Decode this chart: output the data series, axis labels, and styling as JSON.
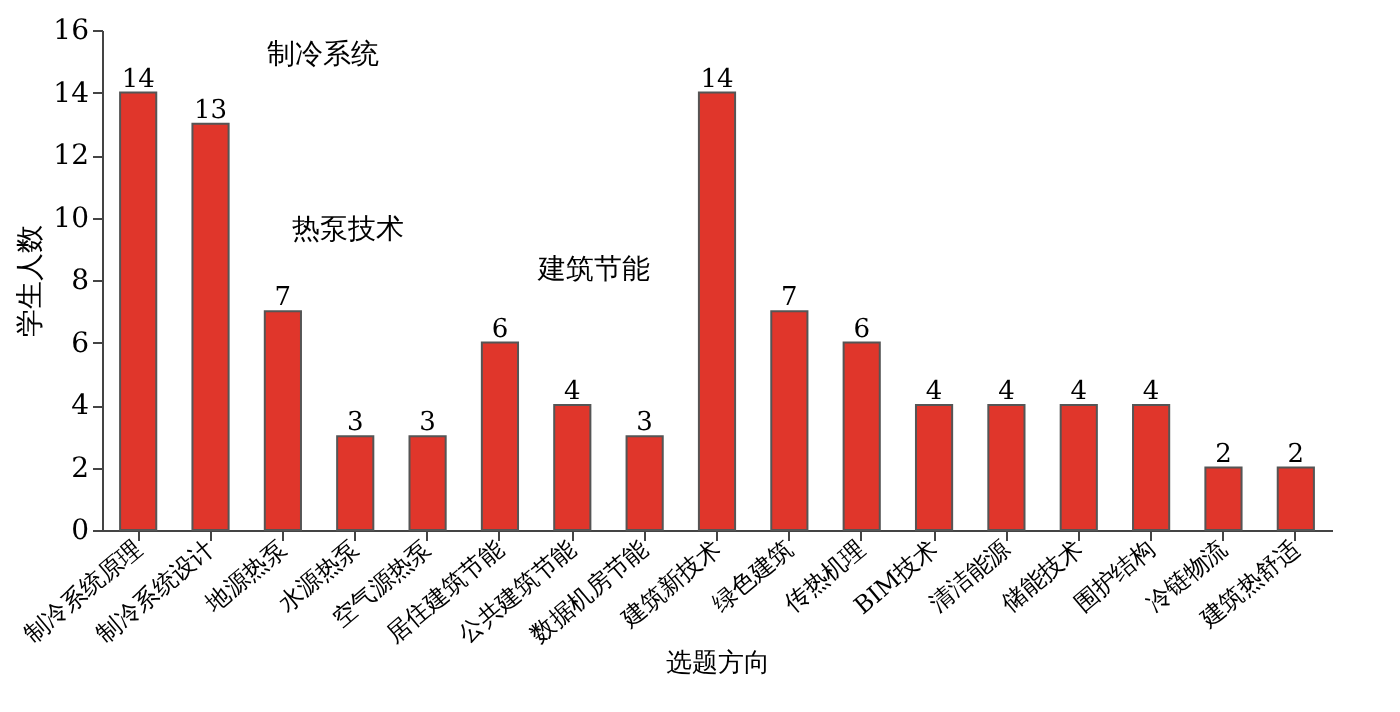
{
  "chart_data": {
    "type": "bar",
    "xlabel": "选题方向",
    "ylabel": "学生人数",
    "categories": [
      "制冷系统原理",
      "制冷系统设计",
      "地源热泵",
      "水源热泵",
      "空气源热泵",
      "居住建筑节能",
      "公共建筑节能",
      "数据机房节能",
      "建筑新技术",
      "绿色建筑",
      "传热机理",
      "BIM技术",
      "清洁能源",
      "储能技术",
      "围护结构",
      "冷链物流",
      "建筑热舒适"
    ],
    "values": [
      14,
      13,
      7,
      3,
      3,
      6,
      4,
      3,
      14,
      7,
      6,
      4,
      4,
      4,
      4,
      2,
      2
    ],
    "color": "#e0362b",
    "data_labels": true,
    "ylim": [
      0,
      16
    ],
    "yticks": [
      0,
      2,
      4,
      6,
      8,
      10,
      12,
      14,
      16
    ],
    "annotations": [
      "制冷系统",
      "热泵技术",
      "建筑节能"
    ]
  }
}
